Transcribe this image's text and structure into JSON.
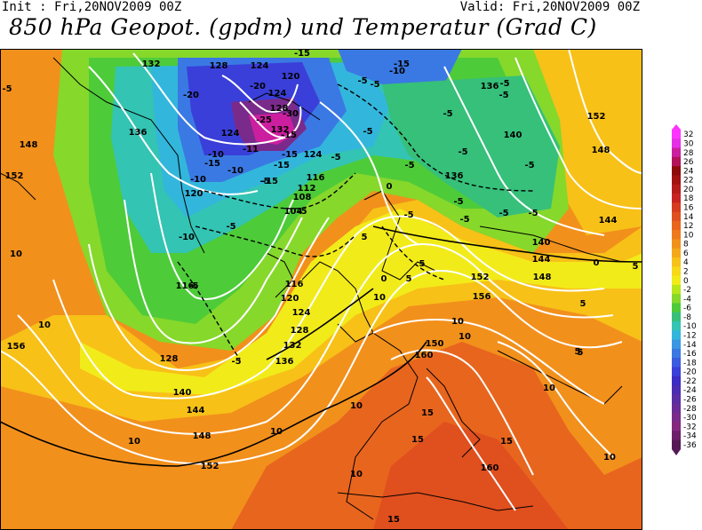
{
  "header": {
    "init": "Init : Fri,20NOV2009 00Z",
    "valid": "Valid: Fri,20NOV2009 00Z",
    "title": "850 hPa Geopot. (gpdm) und Temperatur (Grad C)"
  },
  "legend": {
    "values": [
      "32",
      "30",
      "28",
      "26",
      "24",
      "22",
      "20",
      "18",
      "16",
      "14",
      "12",
      "10",
      "8",
      "6",
      "4",
      "2",
      "0",
      "-2",
      "-4",
      "-6",
      "-8",
      "-10",
      "-12",
      "-14",
      "-16",
      "-18",
      "-20",
      "-22",
      "-24",
      "-26",
      "-28",
      "-30",
      "-32",
      "-34",
      "-36"
    ],
    "colors": [
      "#ff33ff",
      "#e62ee6",
      "#cc1f9f",
      "#b3125a",
      "#8f0b0b",
      "#a31111",
      "#b71a1a",
      "#c92222",
      "#d63a1f",
      "#e04f1e",
      "#e8651e",
      "#ef7a1e",
      "#f2901c",
      "#f5a81a",
      "#f7c118",
      "#f7d917",
      "#f2eb1a",
      "#b8e61c",
      "#86d82b",
      "#4ecb39",
      "#36c07a",
      "#33c4b3",
      "#33b6dc",
      "#3a97e4",
      "#3a79e3",
      "#3b5be0",
      "#3a3fd9",
      "#3c2bc4",
      "#4a2db3",
      "#5a2fa3",
      "#6a2c96",
      "#7a2a8a",
      "#84287e",
      "#6e1f6a",
      "#551a55"
    ]
  },
  "map": {
    "height_labels": [
      {
        "t": "132"
      },
      {
        "t": "128"
      },
      {
        "t": "124"
      },
      {
        "t": "120"
      },
      {
        "t": "124"
      },
      {
        "t": "128"
      },
      {
        "t": "132"
      },
      {
        "t": "136"
      },
      {
        "t": "124"
      },
      {
        "t": "120"
      },
      {
        "t": "124"
      },
      {
        "t": "116"
      },
      {
        "t": "112"
      },
      {
        "t": "108"
      },
      {
        "t": "104"
      },
      {
        "t": "148"
      },
      {
        "t": "152"
      },
      {
        "t": "136"
      },
      {
        "t": "136"
      },
      {
        "t": "140"
      },
      {
        "t": "144"
      },
      {
        "t": "148"
      },
      {
        "t": "152"
      },
      {
        "t": "148"
      },
      {
        "t": "144"
      },
      {
        "t": "140"
      },
      {
        "t": "116"
      },
      {
        "t": "116"
      },
      {
        "t": "120"
      },
      {
        "t": "124"
      },
      {
        "t": "128"
      },
      {
        "t": "132"
      },
      {
        "t": "136"
      },
      {
        "t": "128"
      },
      {
        "t": "140"
      },
      {
        "t": "144"
      },
      {
        "t": "148"
      },
      {
        "t": "152"
      },
      {
        "t": "156"
      },
      {
        "t": "152"
      },
      {
        "t": "156"
      },
      {
        "t": "150"
      },
      {
        "t": "160"
      },
      {
        "t": "160"
      }
    ],
    "temp_labels": [
      {
        "t": "-15"
      },
      {
        "t": "-20"
      },
      {
        "t": "-20"
      },
      {
        "t": "-25"
      },
      {
        "t": "-30"
      },
      {
        "t": "-15"
      },
      {
        "t": "-10"
      },
      {
        "t": "-5"
      },
      {
        "t": "-5"
      },
      {
        "t": "-5"
      },
      {
        "t": "-5"
      },
      {
        "t": "-5"
      },
      {
        "t": "-5"
      },
      {
        "t": "-5"
      },
      {
        "t": "-5"
      },
      {
        "t": "-5"
      },
      {
        "t": "-10"
      },
      {
        "t": "-15"
      },
      {
        "t": "-11"
      },
      {
        "t": "-15"
      },
      {
        "t": "-15"
      },
      {
        "t": "-15"
      },
      {
        "t": "-10"
      },
      {
        "t": "-5"
      },
      {
        "t": "-5"
      },
      {
        "t": "-10"
      },
      {
        "t": "-10"
      },
      {
        "t": "-5"
      },
      {
        "t": "-5"
      },
      {
        "t": "-5"
      },
      {
        "t": "-5"
      },
      {
        "t": "-5"
      },
      {
        "t": "-5"
      },
      {
        "t": "-5"
      },
      {
        "t": "-5"
      },
      {
        "t": "-5"
      },
      {
        "t": "5"
      },
      {
        "t": "5"
      },
      {
        "t": "5"
      },
      {
        "t": "10"
      },
      {
        "t": "10"
      },
      {
        "t": "10"
      },
      {
        "t": "10"
      },
      {
        "t": "10"
      },
      {
        "t": "10"
      },
      {
        "t": "10"
      },
      {
        "t": "10"
      },
      {
        "t": "10"
      },
      {
        "t": "15"
      },
      {
        "t": "15"
      },
      {
        "t": "15"
      },
      {
        "t": "10"
      },
      {
        "t": "10"
      },
      {
        "t": "15"
      },
      {
        "t": "0"
      },
      {
        "t": "0"
      },
      {
        "t": "0"
      },
      {
        "t": "5"
      },
      {
        "t": "5"
      },
      {
        "t": "5"
      },
      {
        "t": "5"
      },
      {
        "t": "-15"
      },
      {
        "t": "-5"
      }
    ]
  }
}
